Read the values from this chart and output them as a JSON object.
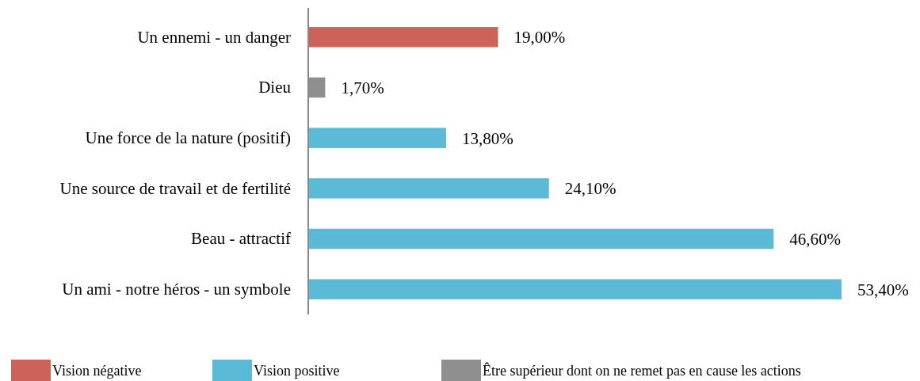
{
  "chart_data": {
    "type": "bar",
    "orientation": "horizontal",
    "stacked": true,
    "categories": [
      "Un ennemi - un danger",
      "Dieu",
      "Une force de la nature (positif)",
      "Une source de travail et de fertilité",
      "Beau - attractif",
      "Un ami - notre héros - un symbole"
    ],
    "series": [
      {
        "name": "Vision négative",
        "color": "#cd625b",
        "values": [
          19.0,
          null,
          null,
          null,
          null,
          null
        ],
        "value_labels": [
          "19,00%",
          null,
          null,
          null,
          null,
          null
        ]
      },
      {
        "name": "Vision positive",
        "color": "#5bbad5",
        "values": [
          null,
          null,
          13.8,
          24.1,
          46.6,
          53.4
        ],
        "value_labels": [
          null,
          null,
          "13,80%",
          "24,10%",
          "46,60%",
          "53,40%"
        ]
      },
      {
        "name": "Être supérieur dont on ne remet pas en cause les actions",
        "color": "#8f8f8f",
        "values": [
          null,
          1.7,
          null,
          null,
          null,
          null
        ],
        "value_labels": [
          null,
          "1,70%",
          null,
          null,
          null,
          null
        ]
      }
    ],
    "xlim": [
      0,
      53.4
    ],
    "tick_labels": "y",
    "legend": "bottom"
  }
}
